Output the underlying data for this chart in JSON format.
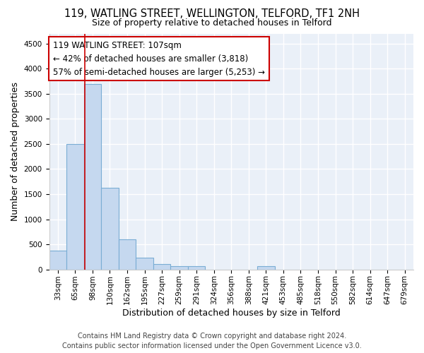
{
  "title": "119, WATLING STREET, WELLINGTON, TELFORD, TF1 2NH",
  "subtitle": "Size of property relative to detached houses in Telford",
  "xlabel": "Distribution of detached houses by size in Telford",
  "ylabel": "Number of detached properties",
  "categories": [
    "33sqm",
    "65sqm",
    "98sqm",
    "130sqm",
    "162sqm",
    "195sqm",
    "227sqm",
    "259sqm",
    "291sqm",
    "324sqm",
    "356sqm",
    "388sqm",
    "421sqm",
    "453sqm",
    "485sqm",
    "518sqm",
    "550sqm",
    "582sqm",
    "614sqm",
    "647sqm",
    "679sqm"
  ],
  "values": [
    380,
    2500,
    3700,
    1620,
    600,
    240,
    105,
    60,
    60,
    0,
    0,
    0,
    60,
    0,
    0,
    0,
    0,
    0,
    0,
    0,
    0
  ],
  "bar_color": "#c5d8ef",
  "bar_edge_color": "#7aadd4",
  "background_color": "#eaf0f8",
  "grid_color": "#ffffff",
  "ylim": [
    0,
    4700
  ],
  "yticks": [
    0,
    500,
    1000,
    1500,
    2000,
    2500,
    3000,
    3500,
    4000,
    4500
  ],
  "red_line_x": 1.575,
  "annotation_line1": "119 WATLING STREET: 107sqm",
  "annotation_line2": "← 42% of detached houses are smaller (3,818)",
  "annotation_line3": "57% of semi-detached houses are larger (5,253) →",
  "annotation_box_color": "#ffffff",
  "annotation_box_edge_color": "#cc0000",
  "footer_line1": "Contains HM Land Registry data © Crown copyright and database right 2024.",
  "footer_line2": "Contains public sector information licensed under the Open Government Licence v3.0.",
  "title_fontsize": 10.5,
  "subtitle_fontsize": 9,
  "axis_label_fontsize": 9,
  "tick_fontsize": 7.5,
  "annotation_fontsize": 8.5,
  "footer_fontsize": 7
}
